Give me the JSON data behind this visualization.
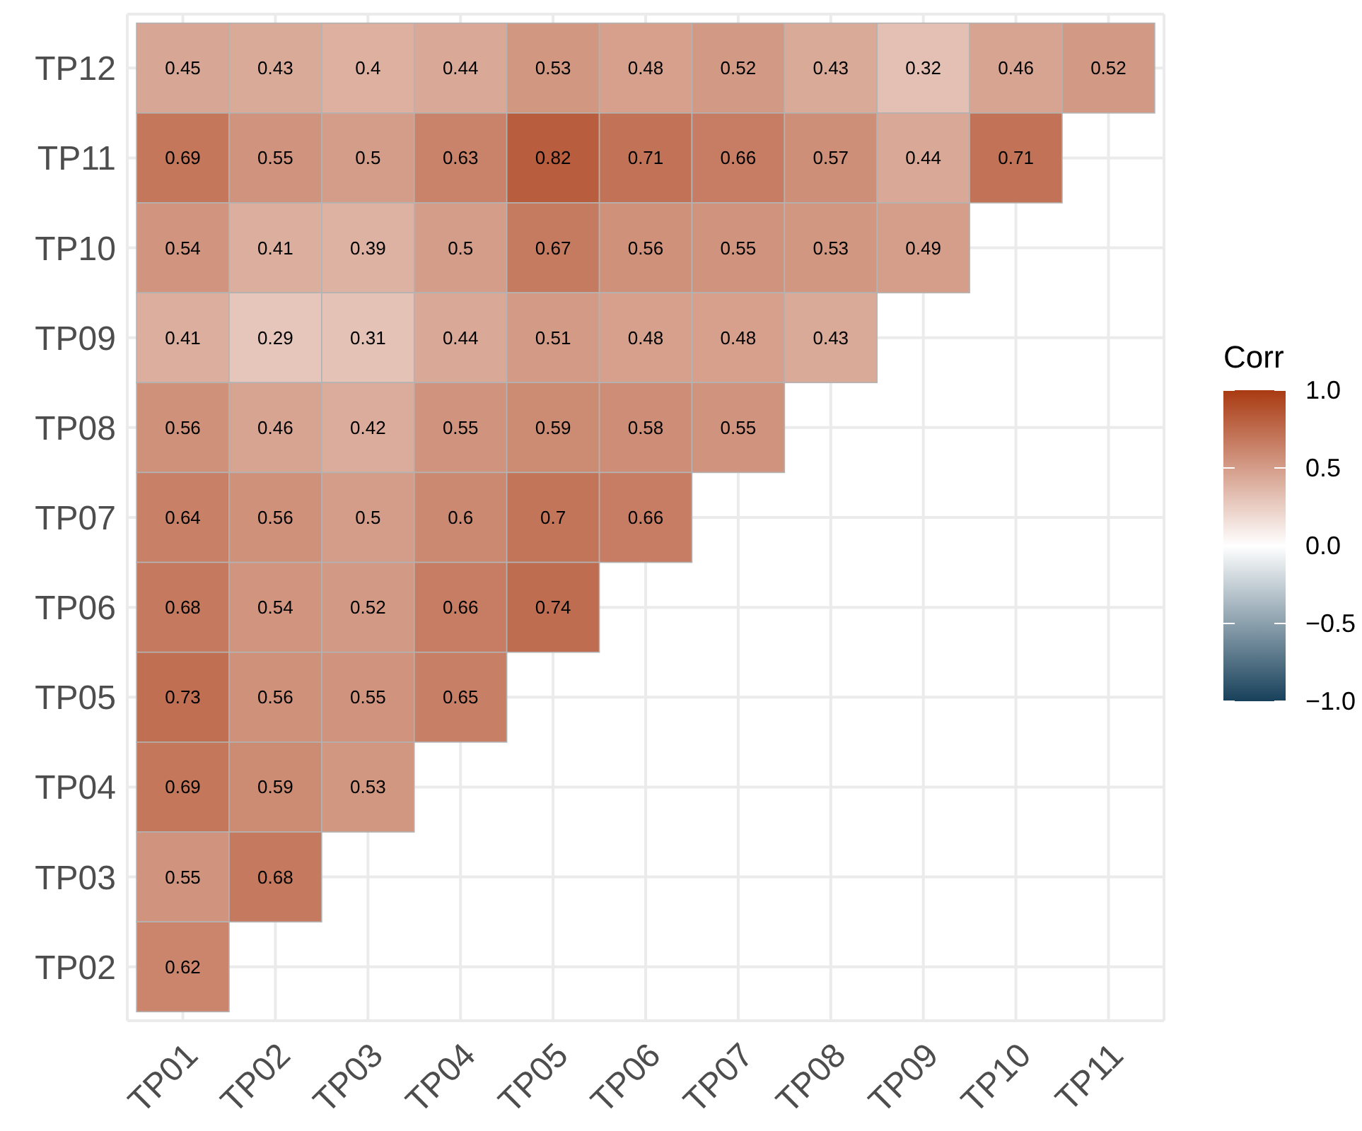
{
  "chart_data": {
    "type": "heatmap",
    "clabel": "Corr",
    "data_labels": true,
    "grid": true,
    "categories": [
      "TP01",
      "TP02",
      "TP03",
      "TP04",
      "TP05",
      "TP06",
      "TP07",
      "TP08",
      "TP09",
      "TP10",
      "TP11"
    ],
    "y_categories": [
      "TP12",
      "TP11",
      "TP10",
      "TP09",
      "TP08",
      "TP07",
      "TP06",
      "TP05",
      "TP04",
      "TP03",
      "TP02"
    ],
    "cells": [
      [
        0.45,
        0.43,
        0.4,
        0.44,
        0.53,
        0.48,
        0.52,
        0.43,
        0.32,
        0.46,
        0.52
      ],
      [
        0.69,
        0.55,
        0.5,
        0.63,
        0.82,
        0.71,
        0.66,
        0.57,
        0.44,
        0.71,
        null
      ],
      [
        0.54,
        0.41,
        0.39,
        0.5,
        0.67,
        0.56,
        0.55,
        0.53,
        0.49,
        null,
        null
      ],
      [
        0.41,
        0.29,
        0.31,
        0.44,
        0.51,
        0.48,
        0.48,
        0.43,
        null,
        null,
        null
      ],
      [
        0.56,
        0.46,
        0.42,
        0.55,
        0.59,
        0.58,
        0.55,
        null,
        null,
        null,
        null
      ],
      [
        0.64,
        0.56,
        0.5,
        0.6,
        0.7,
        0.66,
        null,
        null,
        null,
        null,
        null
      ],
      [
        0.68,
        0.54,
        0.52,
        0.66,
        0.74,
        null,
        null,
        null,
        null,
        null,
        null
      ],
      [
        0.73,
        0.56,
        0.55,
        0.65,
        null,
        null,
        null,
        null,
        null,
        null,
        null
      ],
      [
        0.69,
        0.59,
        0.53,
        null,
        null,
        null,
        null,
        null,
        null,
        null,
        null
      ],
      [
        0.55,
        0.68,
        null,
        null,
        null,
        null,
        null,
        null,
        null,
        null,
        null
      ],
      [
        0.62,
        null,
        null,
        null,
        null,
        null,
        null,
        null,
        null,
        null,
        null
      ]
    ],
    "clim": [
      -1,
      1
    ],
    "cticks": [
      {
        "value": -1,
        "label": "−1.0"
      },
      {
        "value": -0.5,
        "label": "−0.5"
      },
      {
        "value": 0,
        "label": "0.0"
      },
      {
        "value": 0.5,
        "label": "0.5"
      },
      {
        "value": 1,
        "label": "1.0"
      }
    ]
  }
}
